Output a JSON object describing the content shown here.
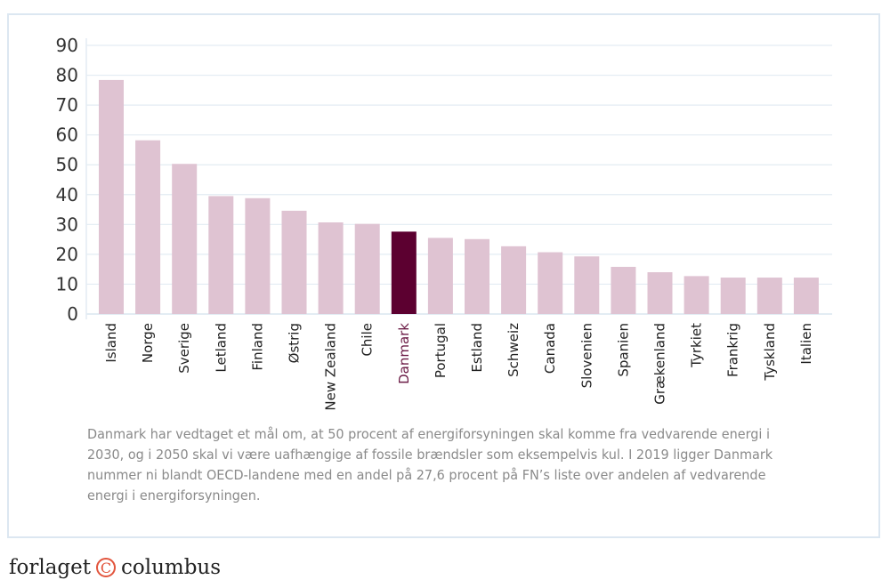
{
  "chart_data": {
    "type": "bar",
    "categories": [
      "Island",
      "Norge",
      "Sverige",
      "Letland",
      "Finland",
      "Østrig",
      "New Zealand",
      "Chile",
      "Danmark",
      "Portugal",
      "Estland",
      "Schweiz",
      "Canada",
      "Slovenien",
      "Spanien",
      "Grækenland",
      "Tyrkiet",
      "Frankrig",
      "Tyskland",
      "Italien"
    ],
    "values": [
      78.4,
      58.2,
      50.3,
      39.5,
      38.8,
      34.6,
      30.7,
      30.2,
      27.6,
      25.5,
      25.1,
      22.7,
      20.7,
      19.3,
      15.8,
      14.0,
      12.7,
      12.2,
      12.2,
      12.2
    ],
    "highlight": "Danmark",
    "ylim": [
      0,
      90
    ],
    "yticks": [
      0,
      10,
      20,
      30,
      40,
      50,
      60,
      70,
      80,
      90
    ],
    "grid": true,
    "colors": {
      "bar": "#dfc3d2",
      "highlight": "#5c0030",
      "grid": "#e3ecf3",
      "highlight_label": "#6b1a45"
    }
  },
  "caption": "Danmark har vedtaget et mål om, at 50 procent af energiforsyningen skal komme fra vedvarende energi i 2030, og i 2050 skal vi være uafhængige af fossile brændsler som eksempelvis kul. I 2019 ligger Danmark nummer ni blandt OECD-landene med en andel på 27,6 procent på FN’s liste over andelen af vedvarende energi i energiforsyningen.",
  "logo": {
    "left": "forlaget",
    "mark": "C",
    "right": "columbus"
  }
}
